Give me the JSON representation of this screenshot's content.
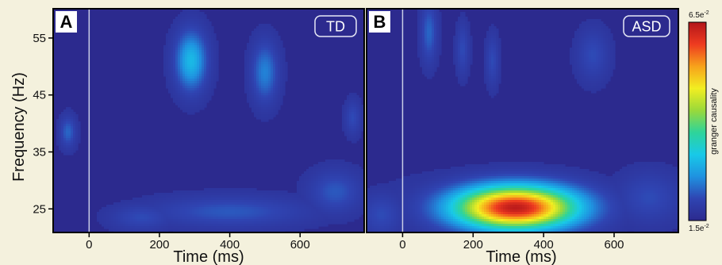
{
  "chart_data": [
    {
      "type": "heatmap",
      "panel_letter": "A",
      "group_label": "TD",
      "xlabel": "Time (ms)",
      "ylabel": "Frequency (Hz)",
      "xlim": [
        -100,
        780
      ],
      "ylim": [
        21,
        60
      ],
      "x_ticks": [
        "0",
        "200",
        "400",
        "600"
      ],
      "y_ticks": [
        "25",
        "35",
        "45",
        "55"
      ],
      "onset_line_ms": 0,
      "baseline": 0.017,
      "blobs": [
        {
          "t": 290,
          "f": 51,
          "st": 30,
          "sf": 3.5,
          "v": 0.03
        },
        {
          "t": 500,
          "f": 49,
          "st": 25,
          "sf": 3.5,
          "v": 0.025
        },
        {
          "t": -60,
          "f": 38.5,
          "st": 15,
          "sf": 1.8,
          "v": 0.023
        },
        {
          "t": 400,
          "f": 24.5,
          "st": 150,
          "sf": 1.8,
          "v": 0.022
        },
        {
          "t": 700,
          "f": 28,
          "st": 50,
          "sf": 2.5,
          "v": 0.022
        },
        {
          "t": 150,
          "f": 23.5,
          "st": 60,
          "sf": 1.5,
          "v": 0.021
        },
        {
          "t": 750,
          "f": 41,
          "st": 15,
          "sf": 2,
          "v": 0.021
        }
      ]
    },
    {
      "type": "heatmap",
      "panel_letter": "B",
      "group_label": "ASD",
      "xlabel": "Time (ms)",
      "ylabel": "",
      "xlim": [
        -100,
        780
      ],
      "ylim": [
        21,
        60
      ],
      "x_ticks": [
        "0",
        "200",
        "400",
        "600"
      ],
      "y_ticks": [],
      "onset_line_ms": 0,
      "baseline": 0.017,
      "blobs": [
        {
          "t": 320,
          "f": 25.2,
          "st": 120,
          "sf": 2.6,
          "v": 0.064
        },
        {
          "t": 250,
          "f": 25.5,
          "st": 180,
          "sf": 3.5,
          "v": 0.02
        },
        {
          "t": 75,
          "f": 56,
          "st": 15,
          "sf": 3.5,
          "v": 0.023
        },
        {
          "t": 170,
          "f": 53,
          "st": 12,
          "sf": 3,
          "v": 0.021
        },
        {
          "t": 255,
          "f": 51,
          "st": 12,
          "sf": 3,
          "v": 0.021
        },
        {
          "t": 540,
          "f": 52,
          "st": 30,
          "sf": 3,
          "v": 0.021
        },
        {
          "t": -60,
          "f": 24,
          "st": 40,
          "sf": 2.5,
          "v": 0.021
        },
        {
          "t": 700,
          "f": 27,
          "st": 60,
          "sf": 3,
          "v": 0.021
        }
      ]
    }
  ],
  "colorbar": {
    "label": "granger causality",
    "max_label": "6.5e",
    "max_exp": "-2",
    "min_label": "1.5e",
    "min_exp": "-2",
    "vmin": 0.015,
    "vmax": 0.065,
    "colormap": [
      "#2c2a8e",
      "#2f44b2",
      "#1f92e0",
      "#18c9e8",
      "#2ed49a",
      "#9ad93a",
      "#f2ee21",
      "#f7a21b",
      "#ee3b20",
      "#b3151a"
    ]
  }
}
